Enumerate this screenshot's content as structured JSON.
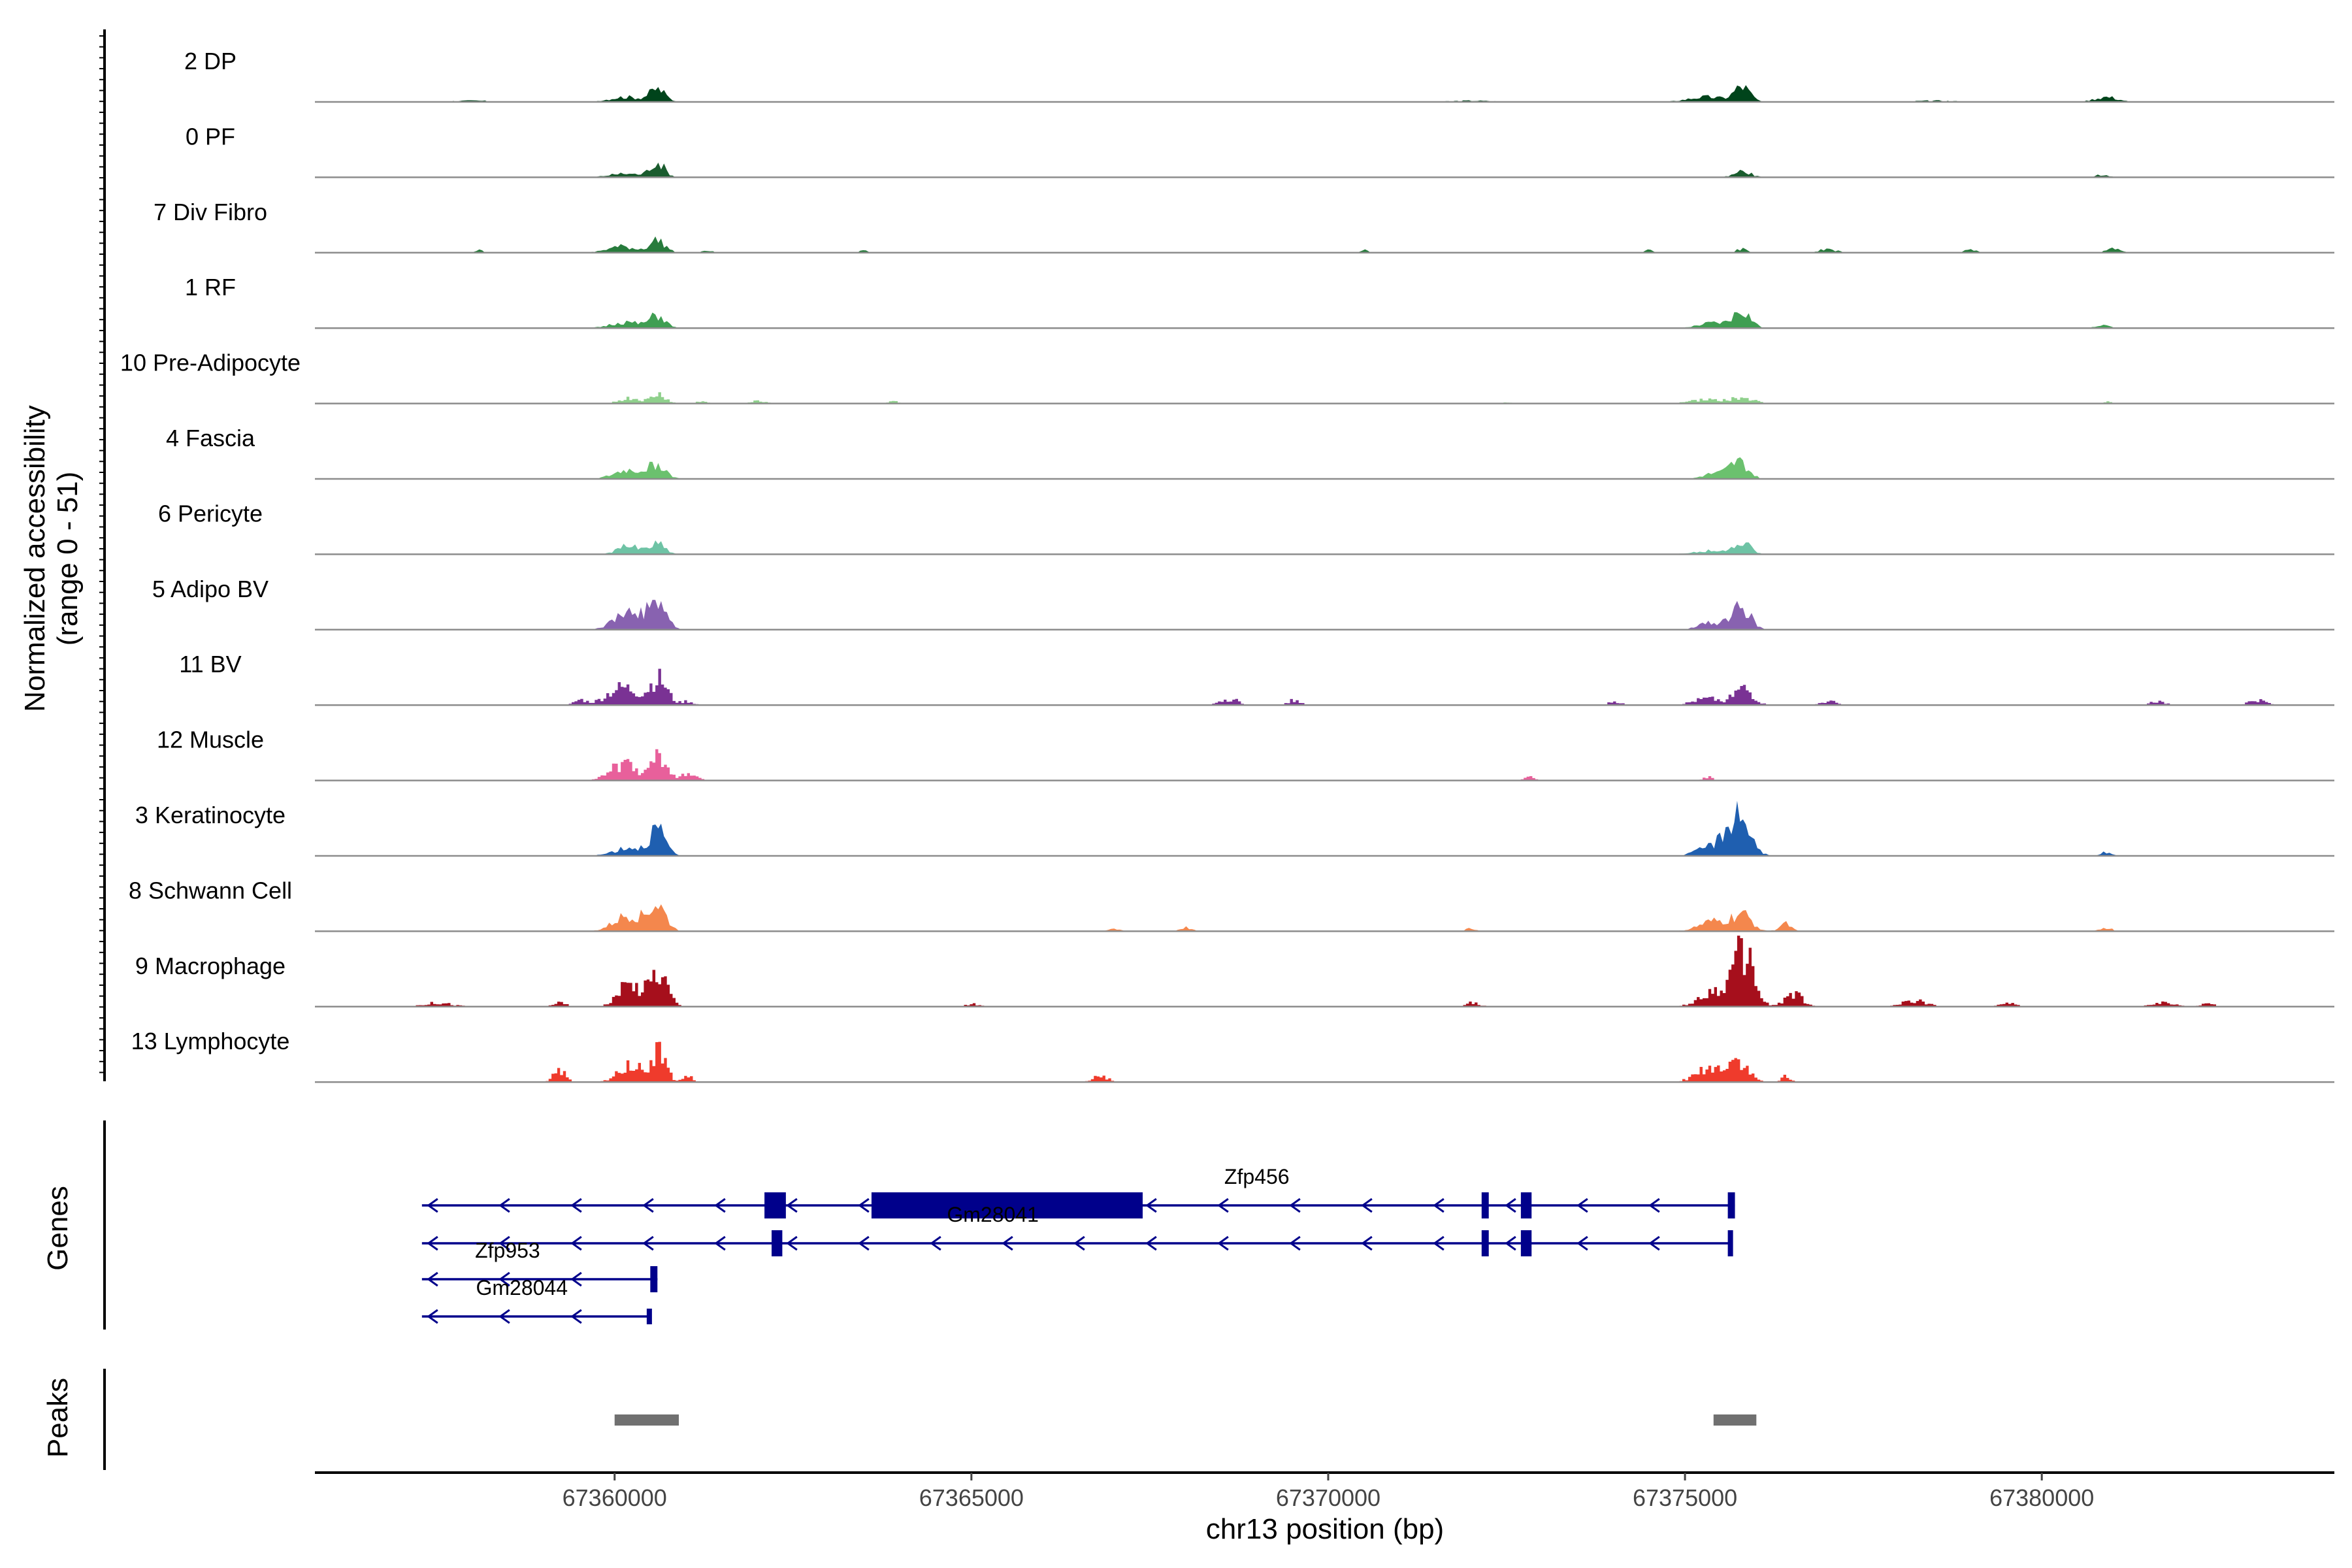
{
  "chart_data": {
    "type": "area",
    "subtype": "genome-coverage-tracks",
    "y_axis_title": "Normalized accessibility",
    "y_axis_subtitle": "(range 0 - 51)",
    "y_range": [
      0,
      51
    ],
    "x_axis_title": "chr13 position (bp)",
    "x_range": [
      67355800,
      67384100
    ],
    "x_ticks": [
      67360000,
      67365000,
      67370000,
      67375000,
      67380000
    ],
    "x_tick_labels": [
      "67360000",
      "67365000",
      "67370000",
      "67375000",
      "67380000"
    ],
    "genes_panel_label": "Genes",
    "peaks_panel_label": "Peaks",
    "tracks": [
      {
        "label": "2 DP",
        "color": "#00441b",
        "peaks": [
          [
            67360600,
            10,
            110
          ],
          [
            67360150,
            4,
            220
          ],
          [
            67375800,
            12,
            110
          ],
          [
            67375300,
            4,
            250
          ],
          [
            67380900,
            4,
            160
          ],
          [
            67358000,
            1,
            300
          ],
          [
            67372000,
            1,
            300
          ],
          [
            67378500,
            1,
            300
          ]
        ],
        "blocky": false
      },
      {
        "label": "0 PF",
        "color": "#1a5c2e",
        "peaks": [
          [
            67360600,
            12,
            100
          ],
          [
            67360150,
            3,
            220
          ],
          [
            67375800,
            5,
            120
          ],
          [
            67380850,
            2,
            100
          ]
        ],
        "blocky": false
      },
      {
        "label": "7 Div Fibro",
        "color": "#277b3c",
        "peaks": [
          [
            67360600,
            10,
            110
          ],
          [
            67360100,
            5,
            200
          ],
          [
            67361300,
            2,
            60
          ],
          [
            67358100,
            2,
            60
          ],
          [
            67363500,
            2,
            60
          ],
          [
            67370500,
            2,
            60
          ],
          [
            67374500,
            2,
            60
          ],
          [
            67375800,
            3,
            80
          ],
          [
            67377000,
            3,
            120
          ],
          [
            67379000,
            3,
            80
          ],
          [
            67381000,
            3,
            100
          ]
        ],
        "blocky": false
      },
      {
        "label": "1 RF",
        "color": "#3f9e52",
        "peaks": [
          [
            67360600,
            10,
            110
          ],
          [
            67360150,
            5,
            200
          ],
          [
            67375800,
            13,
            120
          ],
          [
            67375400,
            4,
            200
          ],
          [
            67380850,
            3,
            90
          ]
        ],
        "blocky": false
      },
      {
        "label": "10 Pre-Adipocyte",
        "color": "#8fd08c",
        "peaks": [
          [
            67360600,
            7,
            100
          ],
          [
            67360200,
            4,
            150
          ],
          [
            67361200,
            2,
            60
          ],
          [
            67362000,
            2,
            100
          ],
          [
            67363900,
            2,
            60
          ],
          [
            67372500,
            1,
            80
          ],
          [
            67375800,
            4,
            150
          ],
          [
            67375300,
            3,
            250
          ],
          [
            67380900,
            2,
            60
          ]
        ],
        "blocky": true
      },
      {
        "label": "4 Fascia",
        "color": "#6bc16e",
        "peaks": [
          [
            67360600,
            11,
            120
          ],
          [
            67360200,
            7,
            200
          ],
          [
            67375750,
            13,
            130
          ],
          [
            67375400,
            4,
            150
          ]
        ],
        "blocky": false
      },
      {
        "label": "6 Pericyte",
        "color": "#6ec3a5",
        "peaks": [
          [
            67360600,
            9,
            110
          ],
          [
            67360200,
            7,
            150
          ],
          [
            67375800,
            10,
            120
          ],
          [
            67375300,
            3,
            200
          ]
        ],
        "blocky": false
      },
      {
        "label": "5 Adipo BV",
        "color": "#8862b0",
        "peaks": [
          [
            67360600,
            22,
            120
          ],
          [
            67360200,
            14,
            200
          ],
          [
            67375800,
            18,
            120
          ],
          [
            67375400,
            6,
            180
          ]
        ],
        "blocky": false
      },
      {
        "label": "11 BV",
        "color": "#7a3294",
        "peaks": [
          [
            67360600,
            20,
            120
          ],
          [
            67360100,
            14,
            220
          ],
          [
            67359500,
            4,
            80
          ],
          [
            67361000,
            3,
            80
          ],
          [
            67368600,
            5,
            120
          ],
          [
            67369500,
            4,
            80
          ],
          [
            67375800,
            13,
            130
          ],
          [
            67375300,
            5,
            200
          ],
          [
            67374000,
            3,
            80
          ],
          [
            67377000,
            3,
            100
          ],
          [
            67381600,
            3,
            100
          ],
          [
            67383000,
            4,
            120
          ]
        ],
        "blocky": true
      },
      {
        "label": "12 Muscle",
        "color": "#e8609b",
        "peaks": [
          [
            67360600,
            18,
            110
          ],
          [
            67360100,
            13,
            180
          ],
          [
            67361000,
            5,
            120
          ],
          [
            67372800,
            3,
            60
          ],
          [
            67375300,
            3,
            60
          ]
        ],
        "blocky": true
      },
      {
        "label": "3 Keratinocyte",
        "color": "#1f5fb0",
        "peaks": [
          [
            67360600,
            21,
            110
          ],
          [
            67360200,
            7,
            200
          ],
          [
            67375750,
            34,
            150
          ],
          [
            67375400,
            8,
            200
          ],
          [
            67380900,
            3,
            80
          ]
        ],
        "blocky": false
      },
      {
        "label": "8 Schwann Cell",
        "color": "#f4874d",
        "peaks": [
          [
            67360600,
            20,
            120
          ],
          [
            67360200,
            13,
            200
          ],
          [
            67375800,
            13,
            140
          ],
          [
            67375400,
            8,
            200
          ],
          [
            67376400,
            6,
            80
          ],
          [
            67367000,
            2,
            100
          ],
          [
            67368000,
            3,
            80
          ],
          [
            67372000,
            2,
            80
          ],
          [
            67380900,
            3,
            80
          ]
        ],
        "blocky": false
      },
      {
        "label": "9 Macrophage",
        "color": "#a60f1c",
        "peaks": [
          [
            67360600,
            28,
            120
          ],
          [
            67360200,
            18,
            160
          ],
          [
            67375800,
            42,
            140
          ],
          [
            67375400,
            12,
            200
          ],
          [
            67376500,
            10,
            120
          ],
          [
            67357500,
            3,
            200
          ],
          [
            67359200,
            3,
            100
          ],
          [
            67365000,
            2,
            100
          ],
          [
            67372000,
            3,
            100
          ],
          [
            67378200,
            5,
            160
          ],
          [
            67379500,
            3,
            100
          ],
          [
            67381700,
            3,
            160
          ],
          [
            67382300,
            3,
            80
          ]
        ],
        "blocky": true
      },
      {
        "label": "13 Lymphocyte",
        "color": "#ef3b2c",
        "peaks": [
          [
            67360600,
            24,
            100
          ],
          [
            67360200,
            14,
            160
          ],
          [
            67359200,
            10,
            80
          ],
          [
            67361000,
            5,
            60
          ],
          [
            67366800,
            5,
            100
          ],
          [
            67375700,
            17,
            150
          ],
          [
            67375300,
            10,
            180
          ],
          [
            67376400,
            5,
            60
          ]
        ],
        "blocky": true
      }
    ],
    "genes": [
      {
        "name": "Zfp456",
        "start": 67357300,
        "end": 67375700,
        "strand": "-",
        "row": 0,
        "label_x": 67369000,
        "exons": [
          [
            67362100,
            67362400,
            1.0
          ],
          [
            67363600,
            67367400,
            1.0
          ],
          [
            67372150,
            67372250,
            1.0
          ],
          [
            67372700,
            67372850,
            1.0
          ],
          [
            67375600,
            67375700,
            1.0
          ]
        ]
      },
      {
        "name": "Gm28041",
        "start": 67357300,
        "end": 67375650,
        "strand": "-",
        "row": 1,
        "label_x": 67365300,
        "exons": [
          [
            67362200,
            67362350,
            1.0
          ],
          [
            67372150,
            67372250,
            1.0
          ],
          [
            67372700,
            67372850,
            1.0
          ],
          [
            67375600,
            67375650,
            1.0
          ]
        ]
      },
      {
        "name": "Zfp953",
        "start": 67357300,
        "end": 67360600,
        "strand": "-",
        "row": 2,
        "label_x": 67358500,
        "exons": [
          [
            67360500,
            67360600,
            1.0
          ]
        ]
      },
      {
        "name": "Gm28044",
        "start": 67357300,
        "end": 67360500,
        "strand": "-",
        "row": 3,
        "label_x": 67358700,
        "exons": [
          [
            67360450,
            67360500,
            0.6
          ]
        ]
      }
    ],
    "peak_regions": [
      [
        67360000,
        67360900
      ],
      [
        67375400,
        67376000
      ]
    ]
  }
}
